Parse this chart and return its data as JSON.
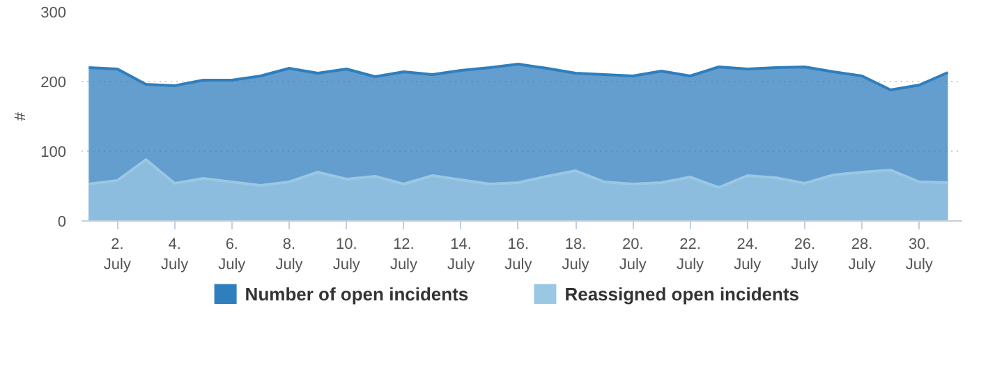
{
  "chart_data": {
    "type": "area",
    "ylabel": "#",
    "categories": [
      null,
      "2.\nJuly",
      null,
      "4.\nJuly",
      null,
      "6.\nJuly",
      null,
      "8.\nJuly",
      null,
      "10.\nJuly",
      null,
      "12.\nJuly",
      null,
      "14.\nJuly",
      null,
      "16.\nJuly",
      null,
      "18.\nJuly",
      null,
      "20.\nJuly",
      null,
      "22.\nJuly",
      null,
      "24.\nJuly",
      null,
      "26.\nJuly",
      null,
      "28.\nJuly",
      null,
      "30.\nJuly",
      null
    ],
    "series": [
      {
        "name": "Number of open incidents",
        "color": "#2f7ebd",
        "values": [
          220,
          218,
          196,
          194,
          202,
          202,
          208,
          219,
          212,
          218,
          207,
          214,
          210,
          216,
          220,
          225,
          219,
          212,
          210,
          208,
          215,
          208,
          221,
          218,
          220,
          221,
          214,
          208,
          188,
          195,
          213
        ]
      },
      {
        "name": "Reassigned open incidents",
        "color": "#9ac7e3",
        "values": [
          53,
          58,
          88,
          54,
          61,
          56,
          51,
          56,
          70,
          60,
          64,
          53,
          65,
          59,
          53,
          55,
          64,
          72,
          56,
          53,
          55,
          63,
          48,
          65,
          62,
          54,
          66,
          70,
          73,
          56,
          55
        ]
      }
    ],
    "ylim": [
      0,
      300
    ],
    "yticks": [
      0,
      100,
      200,
      300
    ],
    "grid": "y",
    "legend": "bottom"
  }
}
